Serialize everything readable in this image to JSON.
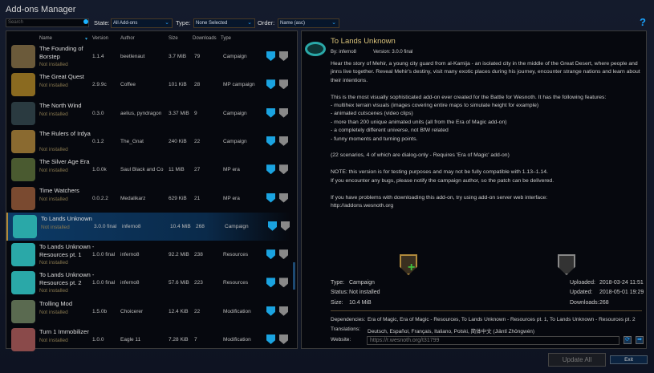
{
  "window": {
    "title": "Add-ons Manager",
    "help": "?"
  },
  "filters": {
    "search_placeholder": "Search",
    "state_label": "State:",
    "state_value": "All Add-ons",
    "type_label": "Type:",
    "type_value": "None Selected",
    "order_label": "Order:",
    "order_value": "Name (asc)"
  },
  "columns": {
    "name": "Name",
    "version": "Version",
    "author": "Author",
    "size": "Size",
    "downloads": "Downloads",
    "type": "Type"
  },
  "addons": [
    {
      "name": "The Founding of Borstep",
      "status": "Not installed",
      "version": "1.1.4",
      "author": "beetlenaut",
      "size": "3.7 MiB",
      "downloads": "79",
      "type": "Campaign",
      "icon_color": "#6b5a3a"
    },
    {
      "name": "The Great Quest",
      "status": "Not installed",
      "version": "2.9.9c",
      "author": "Coffee",
      "size": "101 KiB",
      "downloads": "28",
      "type": "MP campaign",
      "icon_color": "#8a6a20"
    },
    {
      "name": "The North Wind",
      "status": "Not installed",
      "version": "0.3.0",
      "author": "aelius, pyndragon",
      "size": "3.37 MiB",
      "downloads": "9",
      "type": "Campaign",
      "icon_color": "#2a3a40"
    },
    {
      "name": "The Rulers of Irdya",
      "status": "Not installed",
      "version": "0.1.2",
      "author": "The_Gnat",
      "size": "240 KiB",
      "downloads": "22",
      "type": "Campaign",
      "icon_color": "#8a6a30"
    },
    {
      "name": "The Silver Age Era",
      "status": "Not installed",
      "version": "1.0.0k",
      "author": "Saul Black and Co",
      "size": "11 MiB",
      "downloads": "27",
      "type": "MP era",
      "icon_color": "#4a5a30"
    },
    {
      "name": "Time Watchers",
      "status": "Not installed",
      "version": "0.0.2.2",
      "author": "Medalikarz",
      "size": "629 KiB",
      "downloads": "21",
      "type": "MP era",
      "icon_color": "#7a4a30"
    },
    {
      "name": "To Lands Unknown",
      "status": "Not installed",
      "version": "3.0.0 final",
      "author": "inferno8",
      "size": "10.4 MiB",
      "downloads": "268",
      "type": "Campaign",
      "icon_color": "#2aa8a8",
      "selected": true
    },
    {
      "name": "To Lands Unknown - Resources pt. 1",
      "status": "Not installed",
      "version": "1.0.0 final",
      "author": "inferno8",
      "size": "92.2 MiB",
      "downloads": "238",
      "type": "Resources",
      "icon_color": "#2aa8a8"
    },
    {
      "name": "To Lands Unknown - Resources pt. 2",
      "status": "Not installed",
      "version": "1.0.0 final",
      "author": "inferno8",
      "size": "57.6 MiB",
      "downloads": "223",
      "type": "Resources",
      "icon_color": "#2aa8a8"
    },
    {
      "name": "Trolling Mod",
      "status": "Not installed",
      "version": "1.5.0b",
      "author": "Choicerer",
      "size": "12.4 KiB",
      "downloads": "22",
      "type": "Modification",
      "icon_color": "#5a6a50"
    },
    {
      "name": "Turn 1 Immobilizer",
      "status": "Not installed",
      "version": "1.0.0",
      "author": "Eagle 11",
      "size": "7.28 KiB",
      "downloads": "7",
      "type": "Modification",
      "icon_color": "#8a4a4a"
    }
  ],
  "detail": {
    "title": "To Lands Unknown",
    "by": "By:  inferno8",
    "version": "Version:  3.0.0 final",
    "description": "Hear the story of Mehir, a young city guard from al-Kamija - an isolated city in the middle of the Great Desert, where people and jinns live together. Reveal Mehir's destiny, visit many exotic places during his journey, encounter strange nations and learn about their intentions.\n\nThis is the most visually sophisticated add-on ever created for the Battle for Wesnoth. It has the following features:\n- multihex terrain visuals (images covering entire maps to simulate height for example)\n- animated cutscenes (video clips)\n- more than 200 unique animated units (all from the Era of Magic add-on)\n- a completely different universe, not BfW related\n- funny moments and turning points.\n\n(22 scenarios, 4 of which are dialog-only - Requires 'Era of Magic' add-on)\n\nNOTE: this version is for testing purposes and may not be fully compatible with 1.13–1.14.\nIf you encounter any bugs, please notify the campaign author, so the patch can be delivered.\n\nIf you have problems with downloading this add-on, try using add-on server web interface:\nhttp://addons.wesnoth.org",
    "type_label": "Type:",
    "type": "Campaign",
    "status_label": "Status:",
    "status": "Not installed",
    "size_label": "Size:",
    "size": "10.4 MiB",
    "uploaded_label": "Uploaded:",
    "uploaded": "2018-03-24 11:51",
    "updated_label": "Updated:",
    "updated": "2018-05-01 19:29",
    "downloads_label": "Downloads:",
    "downloads": "268",
    "dependencies_label": "Dependencies:",
    "dependencies": "Era of Magic, Era of Magic - Resources, To Lands Unknown - Resources pt. 1, To Lands Unknown - Resources pt. 2",
    "translations_label": "Translations:",
    "translations": "Deutsch, Español, Français, Italiano, Polski, 简体中文 (Jiǎntǐ Zhōngwén)",
    "website_label": "Website:",
    "website": "https://r.wesnoth.org/t31799"
  },
  "buttons": {
    "update_all": "Update All",
    "exit": "Exit"
  }
}
